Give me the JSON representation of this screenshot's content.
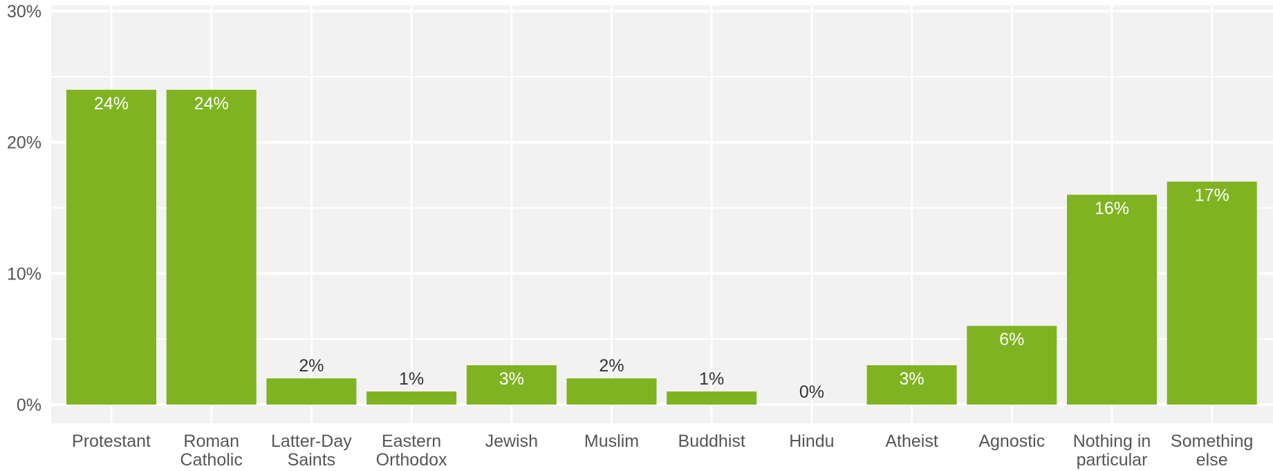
{
  "chart_data": {
    "type": "bar",
    "title": "",
    "xlabel": "",
    "ylabel": "",
    "categories": [
      "Protestant",
      "Roman Catholic",
      "Latter-Day Saints",
      "Eastern Orthodox",
      "Jewish",
      "Muslim",
      "Buddhist",
      "Hindu",
      "Atheist",
      "Agnostic",
      "Nothing in particular",
      "Something else"
    ],
    "category_label_lines": [
      [
        "Protestant"
      ],
      [
        "Roman",
        "Catholic"
      ],
      [
        "Latter-Day",
        "Saints"
      ],
      [
        "Eastern",
        "Orthodox"
      ],
      [
        "Jewish"
      ],
      [
        "Muslim"
      ],
      [
        "Buddhist"
      ],
      [
        "Hindu"
      ],
      [
        "Atheist"
      ],
      [
        "Agnostic"
      ],
      [
        "Nothing in",
        "particular"
      ],
      [
        "Something",
        "else"
      ]
    ],
    "values": [
      24,
      24,
      2,
      1,
      3,
      2,
      1,
      0,
      3,
      6,
      16,
      17
    ],
    "value_labels": [
      "24%",
      "24%",
      "2%",
      "1%",
      "3%",
      "2%",
      "1%",
      "0%",
      "3%",
      "6%",
      "16%",
      "17%"
    ],
    "ylim": [
      0,
      30
    ],
    "yticks": [
      0,
      10,
      20,
      30
    ],
    "ytick_labels": [
      "0%",
      "10%",
      "20%",
      "30%"
    ],
    "grid": true,
    "legend": "none",
    "colors": {
      "bar": "#7fb321",
      "plot_background": "#f2f2f2",
      "gridline": "#ffffff",
      "axis_text": "#555555"
    }
  }
}
